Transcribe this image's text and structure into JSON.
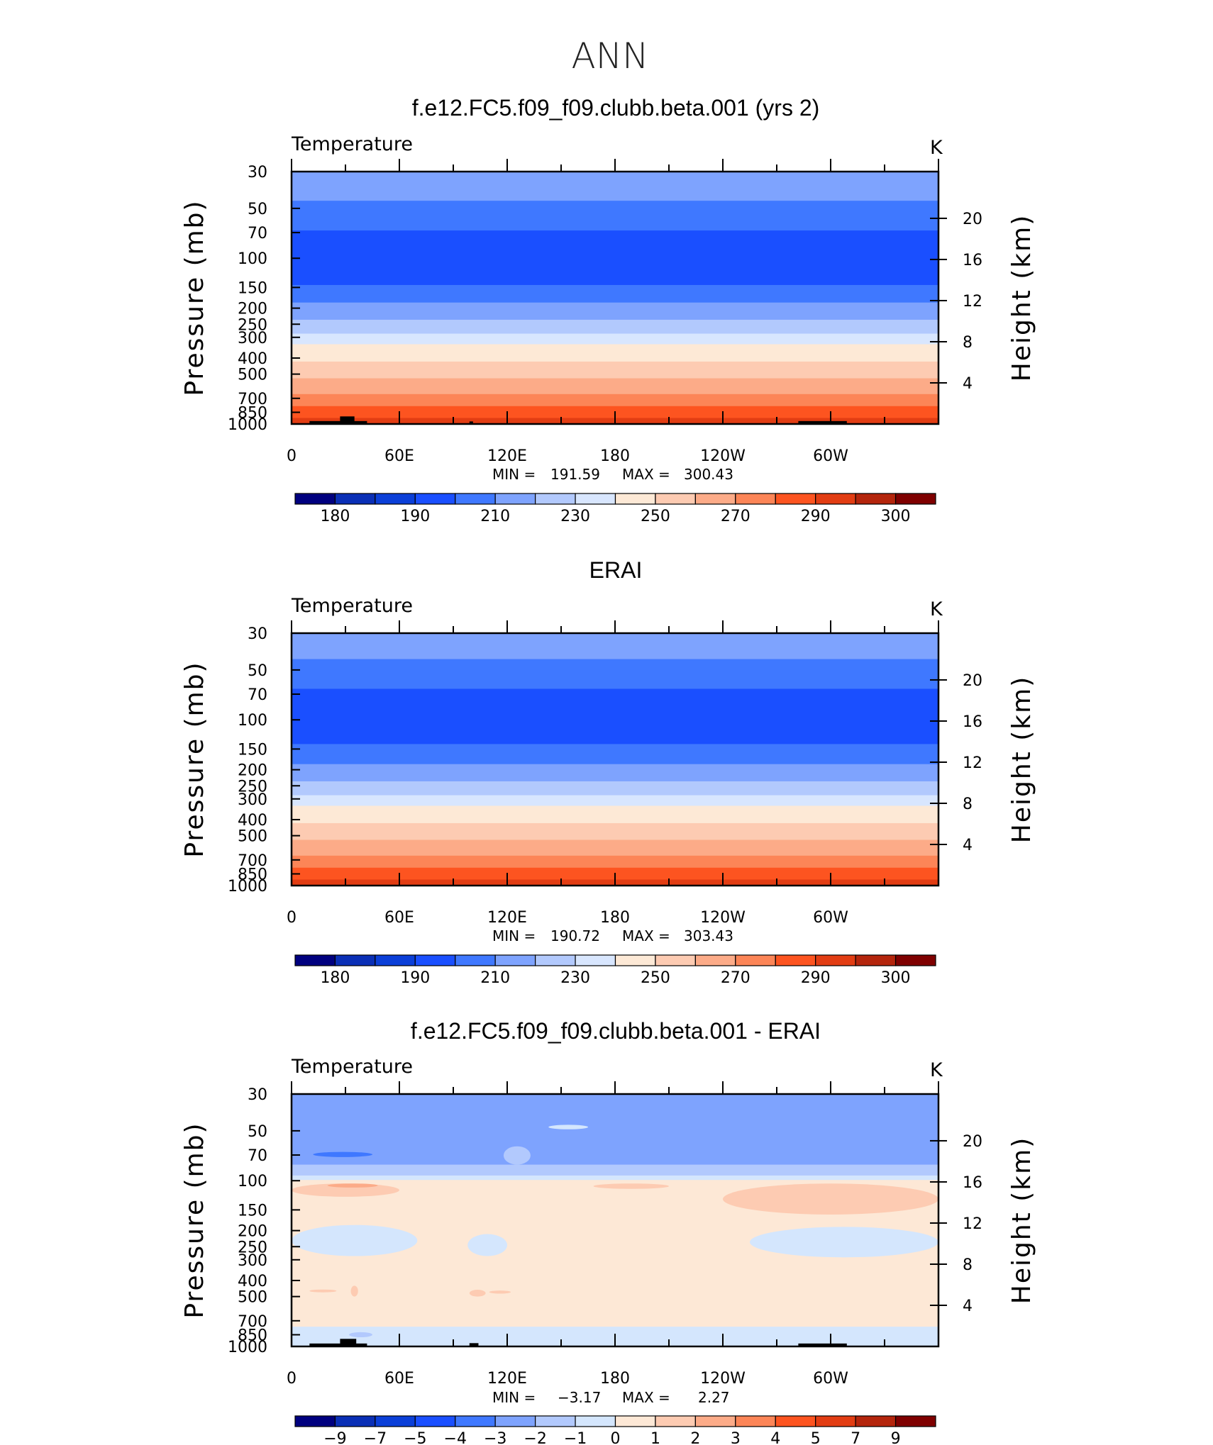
{
  "figure": {
    "title": "ANN",
    "colors": {
      "temperature_palette": [
        "#00007f",
        "#0a2fb6",
        "#0b3fd8",
        "#1a4fff",
        "#3f78ff",
        "#7ea3fe",
        "#b2c9fd",
        "#d8e6fe",
        "#fde9d6",
        "#fdcbb2",
        "#fcab88",
        "#fc8557",
        "#fd5420",
        "#e23d13",
        "#b4250c",
        "#7f0000"
      ],
      "difference_palette": [
        "#00007f",
        "#0a2fb6",
        "#0b3fd8",
        "#1a4fff",
        "#3f78ff",
        "#7ea3fe",
        "#b2c9fd",
        "#d4e6fd",
        "#fde8d6",
        "#fdcbb2",
        "#fcab88",
        "#fc8557",
        "#fd5420",
        "#e23d13",
        "#b4250c",
        "#7f0000"
      ],
      "land": "#000000"
    }
  },
  "chart_data": [
    {
      "type": "heatmap",
      "panel": "model",
      "title": "f.e12.FC5.f09_f09.clubb.beta.001 (yrs 2)",
      "variable": "Temperature",
      "units": "K",
      "xlabel_ticks": [
        "0",
        "60E",
        "120E",
        "180",
        "120W",
        "60W"
      ],
      "x_tick_values": [
        0,
        60,
        120,
        180,
        240,
        300
      ],
      "xlim": [
        0,
        360
      ],
      "ylabel": "Pressure (mb)",
      "y_ticks": [
        "30",
        "50",
        "70",
        "100",
        "150",
        "200",
        "250",
        "300",
        "400",
        "500",
        "700",
        "850",
        "1000"
      ],
      "y_tick_values": [
        30,
        50,
        70,
        100,
        150,
        200,
        250,
        300,
        400,
        500,
        700,
        850,
        1000
      ],
      "ylim": [
        1000,
        30
      ],
      "y2label": "Height (km)",
      "y2_ticks": [
        "4",
        "8",
        "12",
        "16",
        "20"
      ],
      "y2_tick_values": [
        4,
        8,
        12,
        16,
        20
      ],
      "min_label": "MIN =",
      "min_value": "191.59",
      "max_label": "MAX =",
      "max_value": "300.43",
      "colorbar_labels": [
        "180",
        "190",
        "210",
        "230",
        "250",
        "270",
        "290",
        "300"
      ],
      "bands": [
        {
          "p_top": 30,
          "p_bottom": 45,
          "c": 5
        },
        {
          "p_top": 45,
          "p_bottom": 68,
          "c": 4
        },
        {
          "p_top": 68,
          "p_bottom": 145,
          "c": 3
        },
        {
          "p_top": 145,
          "p_bottom": 185,
          "c": 4
        },
        {
          "p_top": 185,
          "p_bottom": 235,
          "c": 5
        },
        {
          "p_top": 235,
          "p_bottom": 285,
          "c": 6
        },
        {
          "p_top": 285,
          "p_bottom": 330,
          "c": 7
        },
        {
          "p_top": 330,
          "p_bottom": 420,
          "c": 8
        },
        {
          "p_top": 420,
          "p_bottom": 530,
          "c": 9
        },
        {
          "p_top": 530,
          "p_bottom": 660,
          "c": 10
        },
        {
          "p_top": 660,
          "p_bottom": 780,
          "c": 11
        },
        {
          "p_top": 780,
          "p_bottom": 920,
          "c": 12
        },
        {
          "p_top": 920,
          "p_bottom": 1000,
          "c": 13
        }
      ],
      "land_blocks": [
        {
          "lon_start": 10,
          "lon_end": 42,
          "p_top": 960
        },
        {
          "lon_start": 27,
          "lon_end": 35,
          "p_top": 900
        },
        {
          "lon_start": 99,
          "lon_end": 101,
          "p_top": 965
        },
        {
          "lon_start": 282,
          "lon_end": 309,
          "p_top": 960
        }
      ],
      "blobs": []
    },
    {
      "type": "heatmap",
      "panel": "obs",
      "title": "ERAI",
      "variable": "Temperature",
      "units": "K",
      "xlabel_ticks": [
        "0",
        "60E",
        "120E",
        "180",
        "120W",
        "60W"
      ],
      "x_tick_values": [
        0,
        60,
        120,
        180,
        240,
        300
      ],
      "xlim": [
        0,
        360
      ],
      "ylabel": "Pressure (mb)",
      "y_ticks": [
        "30",
        "50",
        "70",
        "100",
        "150",
        "200",
        "250",
        "300",
        "400",
        "500",
        "700",
        "850",
        "1000"
      ],
      "y_tick_values": [
        30,
        50,
        70,
        100,
        150,
        200,
        250,
        300,
        400,
        500,
        700,
        850,
        1000
      ],
      "ylim": [
        1000,
        30
      ],
      "y2label": "Height (km)",
      "y2_ticks": [
        "4",
        "8",
        "12",
        "16",
        "20"
      ],
      "y2_tick_values": [
        4,
        8,
        12,
        16,
        20
      ],
      "min_label": "MIN =",
      "min_value": "190.72",
      "max_label": "MAX =",
      "max_value": "303.43",
      "colorbar_labels": [
        "180",
        "190",
        "210",
        "230",
        "250",
        "270",
        "290",
        "300"
      ],
      "bands": [
        {
          "p_top": 30,
          "p_bottom": 43,
          "c": 5
        },
        {
          "p_top": 43,
          "p_bottom": 65,
          "c": 4
        },
        {
          "p_top": 65,
          "p_bottom": 140,
          "c": 3
        },
        {
          "p_top": 140,
          "p_bottom": 185,
          "c": 4
        },
        {
          "p_top": 185,
          "p_bottom": 235,
          "c": 5
        },
        {
          "p_top": 235,
          "p_bottom": 285,
          "c": 6
        },
        {
          "p_top": 285,
          "p_bottom": 330,
          "c": 7
        },
        {
          "p_top": 330,
          "p_bottom": 420,
          "c": 8
        },
        {
          "p_top": 420,
          "p_bottom": 530,
          "c": 9
        },
        {
          "p_top": 530,
          "p_bottom": 660,
          "c": 10
        },
        {
          "p_top": 660,
          "p_bottom": 780,
          "c": 11
        },
        {
          "p_top": 780,
          "p_bottom": 920,
          "c": 12
        },
        {
          "p_top": 920,
          "p_bottom": 1000,
          "c": 13
        }
      ],
      "land_blocks": [],
      "blobs": []
    },
    {
      "type": "heatmap",
      "panel": "difference",
      "title": "f.e12.FC5.f09_f09.clubb.beta.001 - ERAI",
      "variable": "Temperature",
      "units": "K",
      "xlabel_ticks": [
        "0",
        "60E",
        "120E",
        "180",
        "120W",
        "60W"
      ],
      "x_tick_values": [
        0,
        60,
        120,
        180,
        240,
        300
      ],
      "xlim": [
        0,
        360
      ],
      "ylabel": "Pressure (mb)",
      "y_ticks": [
        "30",
        "50",
        "70",
        "100",
        "150",
        "200",
        "250",
        "300",
        "400",
        "500",
        "700",
        "850",
        "1000"
      ],
      "y_tick_values": [
        30,
        50,
        70,
        100,
        150,
        200,
        250,
        300,
        400,
        500,
        700,
        850,
        1000
      ],
      "ylim": [
        1000,
        30
      ],
      "y2label": "Height (km)",
      "y2_ticks": [
        "4",
        "8",
        "12",
        "16",
        "20"
      ],
      "y2_tick_values": [
        4,
        8,
        12,
        16,
        20
      ],
      "min_label": "MIN =",
      "min_value": "−3.17",
      "max_label": "MAX =",
      "max_value": "2.27",
      "colorbar_labels": [
        "−9",
        "−7",
        "−5",
        "−4",
        "−3",
        "−2",
        "−1",
        "0",
        "1",
        "2",
        "3",
        "4",
        "5",
        "7",
        "9"
      ],
      "bands": [
        {
          "p_top": 30,
          "p_bottom": 80,
          "c": 5
        },
        {
          "p_top": 80,
          "p_bottom": 93,
          "c": 6
        },
        {
          "p_top": 93,
          "p_bottom": 99,
          "c": 7
        },
        {
          "p_top": 99,
          "p_bottom": 250,
          "c": 8
        },
        {
          "p_top": 250,
          "p_bottom": 380,
          "c": 8
        },
        {
          "p_top": 380,
          "p_bottom": 760,
          "c": 8
        },
        {
          "p_top": 760,
          "p_bottom": 1000,
          "c": 7
        }
      ],
      "land_blocks": [
        {
          "lon_start": 10,
          "lon_end": 42,
          "p_top": 960
        },
        {
          "lon_start": 27,
          "lon_end": 36,
          "p_top": 900
        },
        {
          "lon_start": 99,
          "lon_end": 104,
          "p_top": 955
        },
        {
          "lon_start": 282,
          "lon_end": 309,
          "p_top": 960
        }
      ],
      "blobs": [
        {
          "lon_start": 12,
          "lon_end": 45,
          "p_top": 67,
          "p_bottom": 72,
          "c": 4
        },
        {
          "lon_start": 118,
          "lon_end": 133,
          "p_top": 62,
          "p_bottom": 80,
          "c": 6
        },
        {
          "lon_start": 143,
          "lon_end": 165,
          "p_top": 46,
          "p_bottom": 49,
          "c": 7
        },
        {
          "lon_start": 0,
          "lon_end": 60,
          "p_top": 104,
          "p_bottom": 125,
          "c": 9
        },
        {
          "lon_start": 20,
          "lon_end": 48,
          "p_top": 104,
          "p_bottom": 110,
          "c": 10
        },
        {
          "lon_start": 168,
          "lon_end": 210,
          "p_top": 104,
          "p_bottom": 112,
          "c": 9
        },
        {
          "lon_start": 240,
          "lon_end": 360,
          "p_top": 104,
          "p_bottom": 160,
          "c": 9
        },
        {
          "lon_start": 0,
          "lon_end": 70,
          "p_top": 185,
          "p_bottom": 285,
          "c": 7
        },
        {
          "lon_start": 98,
          "lon_end": 120,
          "p_top": 210,
          "p_bottom": 285,
          "c": 7
        },
        {
          "lon_start": 255,
          "lon_end": 360,
          "p_top": 190,
          "p_bottom": 290,
          "c": 7
        },
        {
          "lon_start": 10,
          "lon_end": 25,
          "p_top": 455,
          "p_bottom": 470,
          "c": 9
        },
        {
          "lon_start": 33,
          "lon_end": 37,
          "p_top": 430,
          "p_bottom": 500,
          "c": 9
        },
        {
          "lon_start": 99,
          "lon_end": 108,
          "p_top": 455,
          "p_bottom": 500,
          "c": 9
        },
        {
          "lon_start": 110,
          "lon_end": 122,
          "p_top": 460,
          "p_bottom": 480,
          "c": 9
        },
        {
          "lon_start": 32,
          "lon_end": 45,
          "p_top": 820,
          "p_bottom": 880,
          "c": 6
        }
      ]
    }
  ]
}
